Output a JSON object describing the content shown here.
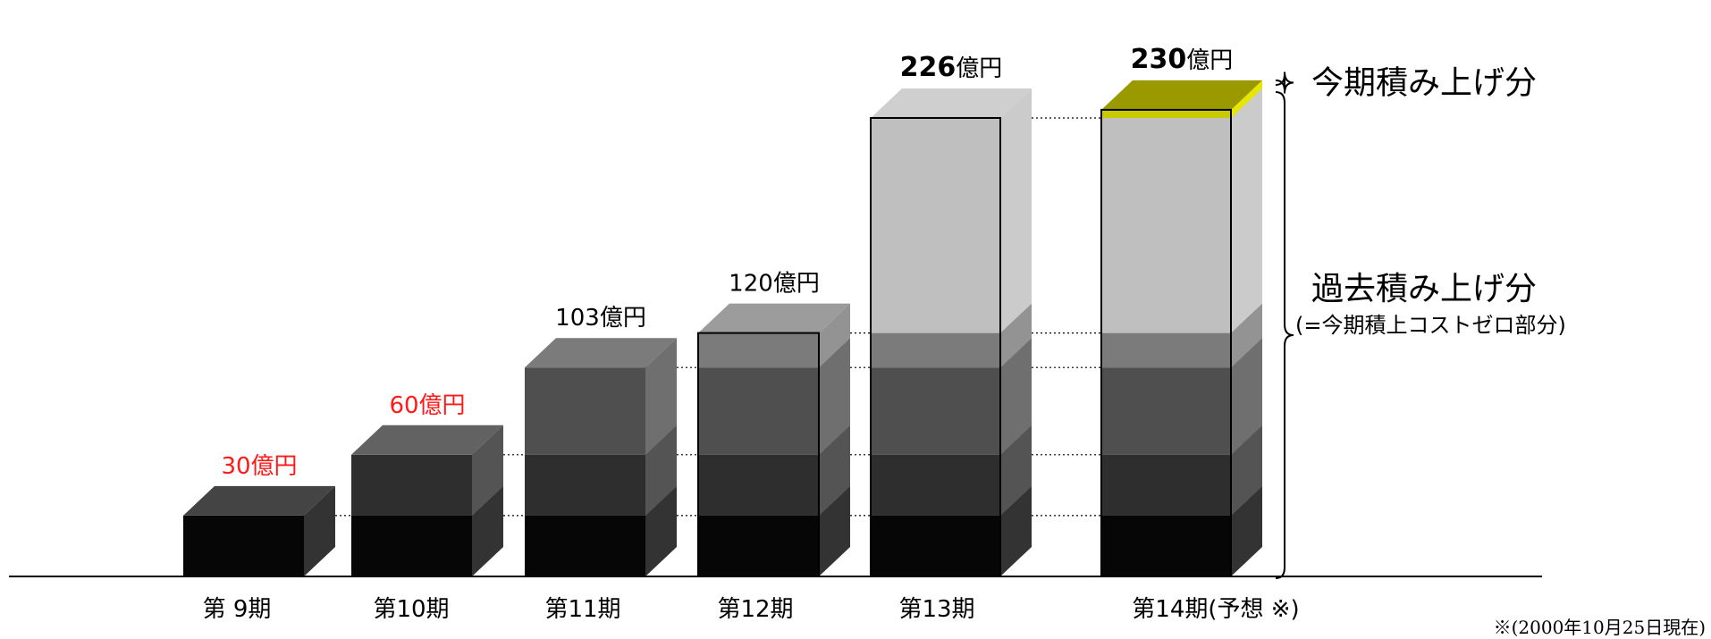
{
  "chart_data": {
    "type": "bar",
    "style": "3d-stacked-cumulative",
    "unit": "億円",
    "categories": [
      "第 9期",
      "第10期",
      "第11期",
      "第12期",
      "第13期",
      "第14期(予想 ※)"
    ],
    "values": [
      30,
      60,
      103,
      120,
      226,
      230
    ],
    "value_labels": [
      {
        "value": "30",
        "unit": "億円",
        "color": "#ff1a1a",
        "bold": false
      },
      {
        "value": "60",
        "unit": "億円",
        "color": "#ff1a1a",
        "bold": false
      },
      {
        "value": "103",
        "unit": "億円",
        "color": "#000000",
        "bold": false
      },
      {
        "value": "120",
        "unit": "億円",
        "color": "#000000",
        "bold": false
      },
      {
        "value": "226",
        "unit": "億円",
        "color": "#000000",
        "bold": true
      },
      {
        "value": "230",
        "unit": "億円",
        "color": "#000000",
        "bold": true
      }
    ],
    "cumulative_levels": [
      30,
      60,
      103,
      120,
      226
    ],
    "segment_colors": {
      "level_30": "#060606",
      "level_60": "#2e2e2e",
      "level_103": "#4f4f4f",
      "level_120": "#7b7b7b",
      "level_226": "#bfbfbf",
      "current_period": "#c9c900"
    },
    "segment_legend": {
      "current_label": "今期積み上げ分",
      "past_label": "過去積み上げ分",
      "past_sublabel": "(=今期積上コストゼロ部分)"
    },
    "footnote": "※(2000年10月25日現在)"
  }
}
